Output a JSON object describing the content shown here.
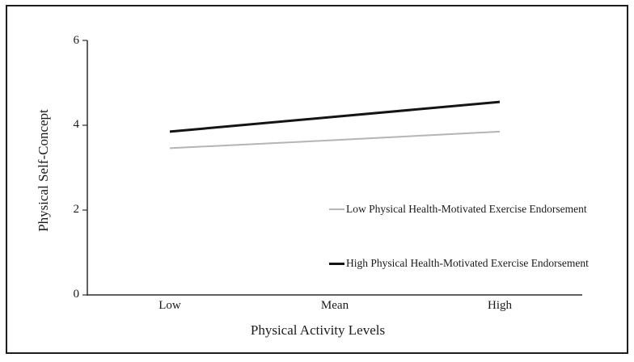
{
  "chart_data": {
    "type": "line",
    "title": "",
    "xlabel": "Physical Activity Levels",
    "ylabel": "Physical Self-Concept",
    "categories": [
      "Low",
      "Mean",
      "High"
    ],
    "series": [
      {
        "name": "Low Physical Health-Motivated Exercise Endorsement",
        "values": [
          3.46,
          3.65,
          3.85
        ],
        "color": "#b5b5b5",
        "line_width": 2
      },
      {
        "name": "High Physical Health-Motivated Exercise Endorsement",
        "values": [
          3.85,
          4.2,
          4.55
        ],
        "color": "#141414",
        "line_width": 3
      }
    ],
    "ylim": [
      0,
      6
    ],
    "yticks": [
      0,
      2,
      4,
      6
    ],
    "grid": false,
    "legend_position": "inside-right",
    "axis_color": "#2b2b2b",
    "frame_color": "#1c1c1c"
  }
}
